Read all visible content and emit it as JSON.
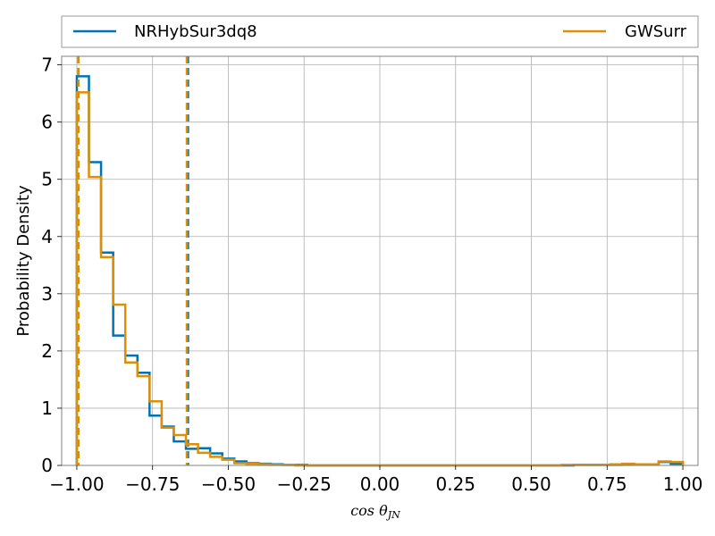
{
  "chart_data": {
    "type": "histogram",
    "xlabel": "cos θ",
    "xlabel_subscript": "JN",
    "ylabel": "Probability Density",
    "xlim": [
      -1.05,
      1.05
    ],
    "ylim": [
      0,
      7.15
    ],
    "xticks": [
      -1.0,
      -0.75,
      -0.5,
      -0.25,
      0.0,
      0.25,
      0.5,
      0.75,
      1.0
    ],
    "xtick_labels": [
      "−1.00",
      "−0.75",
      "−0.50",
      "−0.25",
      "0.00",
      "0.25",
      "0.50",
      "0.75",
      "1.00"
    ],
    "yticks": [
      0,
      1,
      2,
      3,
      4,
      5,
      6,
      7
    ],
    "ytick_labels": [
      "0",
      "1",
      "2",
      "3",
      "4",
      "5",
      "6",
      "7"
    ],
    "grid": true,
    "legend_placement": "top, above plot",
    "bin_edges": [
      -1.0,
      -0.96,
      -0.92,
      -0.88,
      -0.84,
      -0.8,
      -0.76,
      -0.72,
      -0.68,
      -0.64,
      -0.6,
      -0.56,
      -0.52,
      -0.48,
      -0.44,
      -0.4,
      -0.36,
      -0.32,
      -0.28,
      -0.24,
      -0.2,
      -0.16,
      -0.12,
      -0.08,
      -0.04,
      0.0,
      0.04,
      0.08,
      0.12,
      0.16,
      0.2,
      0.24,
      0.28,
      0.32,
      0.36,
      0.4,
      0.44,
      0.48,
      0.52,
      0.56,
      0.6,
      0.64,
      0.68,
      0.72,
      0.76,
      0.8,
      0.84,
      0.88,
      0.92,
      0.96,
      1.0
    ],
    "series": [
      {
        "name": "NRHybSur3dq8",
        "color": "#0173b2",
        "values": [
          6.8,
          5.3,
          3.72,
          2.27,
          1.92,
          1.62,
          0.87,
          0.68,
          0.42,
          0.29,
          0.3,
          0.21,
          0.12,
          0.07,
          0.04,
          0.03,
          0.02,
          0.01,
          0.01,
          0.0,
          0.0,
          0.0,
          0.0,
          0.0,
          0.0,
          0.0,
          0.0,
          0.0,
          0.0,
          0.0,
          0.0,
          0.0,
          0.0,
          0.0,
          0.0,
          0.0,
          0.0,
          0.0,
          0.0,
          0.0,
          0.0,
          0.01,
          0.01,
          0.01,
          0.01,
          0.02,
          0.02,
          0.02,
          0.06,
          0.03
        ],
        "interval_lines": [
          -0.995,
          -0.633
        ]
      },
      {
        "name": "GWSurr",
        "color": "#de8f05",
        "values": [
          6.52,
          5.04,
          3.64,
          2.81,
          1.8,
          1.56,
          1.12,
          0.66,
          0.53,
          0.37,
          0.22,
          0.15,
          0.1,
          0.04,
          0.03,
          0.02,
          0.01,
          0.01,
          0.0,
          0.0,
          0.0,
          0.0,
          0.0,
          0.0,
          0.0,
          0.0,
          0.0,
          0.0,
          0.0,
          0.0,
          0.0,
          0.0,
          0.0,
          0.0,
          0.0,
          0.0,
          0.0,
          0.0,
          0.0,
          0.0,
          0.01,
          0.01,
          0.01,
          0.01,
          0.02,
          0.03,
          0.02,
          0.02,
          0.07,
          0.06
        ],
        "interval_lines": [
          -0.995,
          -0.637
        ]
      }
    ]
  }
}
